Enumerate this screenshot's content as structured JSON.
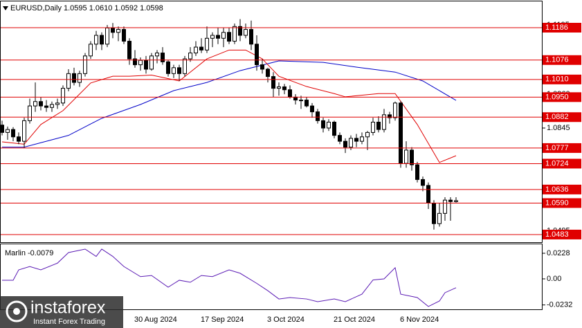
{
  "chart_data": [
    {
      "type": "candlestick",
      "title": "EURUSD,Daily  1.0595 1.0610 1.0592 1.0598",
      "categories": [
        null,
        null,
        null,
        null,
        null,
        null,
        null,
        null,
        null,
        null,
        null,
        null,
        null,
        null,
        null,
        null,
        null,
        null,
        null,
        null,
        null,
        null,
        null,
        null,
        "30 Aug 2024",
        null,
        null,
        null,
        null,
        null,
        null,
        null,
        null,
        null,
        null,
        null,
        "17 Sep 2024",
        null,
        null,
        null,
        null,
        null,
        null,
        null,
        null,
        null,
        null,
        null,
        "3 Oct 2024",
        null,
        null,
        null,
        null,
        null,
        null,
        null,
        null,
        null,
        null,
        null,
        "21 Oct 2024",
        null,
        null,
        null,
        null,
        null,
        null,
        null,
        null,
        null,
        null,
        null,
        "6 Nov 2024",
        null,
        null,
        null,
        null,
        null,
        null,
        null,
        null,
        null,
        null
      ],
      "open": [
        1.0855,
        1.083,
        1.084,
        1.0815,
        1.08,
        1.087,
        1.092,
        1.0935,
        1.092,
        1.0915,
        1.0925,
        1.093,
        1.098,
        1.103,
        1.1,
        1.103,
        1.109,
        1.113,
        1.116,
        1.113,
        1.1185,
        1.117,
        1.118,
        1.114,
        1.108,
        1.106,
        1.1075,
        1.1045,
        1.109,
        1.11,
        1.107,
        1.103,
        1.105,
        1.103,
        1.108,
        1.11,
        1.112,
        1.111,
        1.115,
        1.116,
        1.115,
        1.117,
        1.114,
        1.119,
        1.116,
        1.118,
        1.113,
        1.106,
        1.1045,
        1.102,
        1.098,
        1.0985,
        1.0975,
        1.095,
        1.094,
        1.094,
        1.092,
        1.09,
        1.087,
        1.0845,
        1.0865,
        1.082,
        1.08,
        1.078,
        1.081,
        1.08,
        1.0815,
        1.083,
        1.0865,
        1.084,
        1.089,
        1.088,
        1.093,
        1.0725,
        1.077,
        1.072,
        1.067,
        1.065,
        1.059,
        1.052,
        1.0555,
        1.06,
        1.0595
      ],
      "high": [
        1.087,
        1.085,
        1.0848,
        1.083,
        1.088,
        1.0945,
        1.1,
        1.095,
        1.094,
        1.0935,
        1.0945,
        1.099,
        1.1045,
        1.105,
        1.104,
        1.11,
        1.114,
        1.1175,
        1.117,
        1.1195,
        1.1202,
        1.119,
        1.119,
        1.115,
        1.111,
        1.1085,
        1.109,
        1.11,
        1.111,
        1.112,
        1.1075,
        1.106,
        1.106,
        1.109,
        1.112,
        1.114,
        1.115,
        1.119,
        1.117,
        1.1185,
        1.1185,
        1.1185,
        1.12,
        1.1215,
        1.12,
        1.121,
        1.116,
        1.108,
        1.105,
        1.1035,
        1.1,
        1.0995,
        1.099,
        1.096,
        1.0955,
        1.095,
        1.093,
        1.091,
        1.088,
        1.0875,
        1.087,
        1.083,
        1.081,
        1.082,
        1.0825,
        1.083,
        1.0835,
        1.088,
        1.0885,
        1.091,
        1.09,
        1.0935,
        1.0937,
        1.08,
        1.078,
        1.073,
        1.068,
        1.066,
        1.06,
        1.059,
        1.061,
        1.061,
        1.061
      ],
      "low": [
        1.082,
        1.0805,
        1.08,
        1.079,
        1.0778,
        1.086,
        1.09,
        1.0905,
        1.09,
        1.09,
        1.091,
        1.092,
        1.097,
        1.099,
        1.0985,
        1.102,
        1.108,
        1.111,
        1.111,
        1.112,
        1.115,
        1.114,
        1.113,
        1.106,
        1.105,
        1.104,
        1.103,
        1.104,
        1.1065,
        1.106,
        1.102,
        1.1015,
        1.1005,
        1.102,
        1.107,
        1.109,
        1.11,
        1.11,
        1.112,
        1.113,
        1.112,
        1.113,
        1.113,
        1.114,
        1.115,
        1.111,
        1.104,
        1.103,
        1.1,
        1.095,
        1.0955,
        1.096,
        1.0945,
        1.0925,
        1.091,
        1.0915,
        1.088,
        1.086,
        1.083,
        1.0835,
        1.081,
        1.079,
        1.076,
        1.077,
        1.078,
        1.079,
        1.077,
        1.082,
        1.083,
        1.083,
        1.086,
        1.087,
        1.071,
        1.071,
        1.07,
        1.066,
        1.063,
        1.057,
        1.05,
        1.051,
        1.053,
        1.053,
        1.0592
      ],
      "close": [
        1.083,
        1.084,
        1.0815,
        1.08,
        1.087,
        1.092,
        1.0935,
        1.092,
        1.0915,
        1.0925,
        1.093,
        1.098,
        1.103,
        1.1,
        1.103,
        1.109,
        1.113,
        1.116,
        1.113,
        1.1185,
        1.117,
        1.118,
        1.114,
        1.108,
        1.106,
        1.1075,
        1.1045,
        1.109,
        1.11,
        1.107,
        1.103,
        1.105,
        1.103,
        1.108,
        1.11,
        1.112,
        1.111,
        1.115,
        1.116,
        1.115,
        1.117,
        1.114,
        1.119,
        1.116,
        1.118,
        1.113,
        1.106,
        1.1045,
        1.102,
        1.098,
        1.0985,
        1.0975,
        1.095,
        1.094,
        1.094,
        1.092,
        1.09,
        1.087,
        1.0845,
        1.0865,
        1.082,
        1.08,
        1.078,
        1.081,
        1.08,
        1.0815,
        1.083,
        1.0865,
        1.084,
        1.089,
        1.088,
        1.093,
        1.0725,
        1.077,
        1.072,
        1.067,
        1.065,
        1.059,
        1.052,
        1.0555,
        1.06,
        1.0595,
        1.0598
      ],
      "up_color": "#ffffff",
      "down_color": "#000000",
      "edge_color": "#000000",
      "lines": [
        {
          "color": "#0000c8",
          "x": [
            0,
            4,
            12,
            18,
            25,
            31,
            37,
            43,
            50,
            58,
            64,
            71,
            76,
            82
          ],
          "values": [
            1.078,
            1.078,
            1.082,
            1.0878,
            1.0925,
            1.0972,
            1.1,
            1.104,
            1.1073,
            1.1068,
            1.1052,
            1.1035,
            1.1005,
            1.0939
          ]
        },
        {
          "color": "#e00000",
          "x": [
            0,
            4,
            7,
            11,
            16,
            20,
            23,
            27,
            32,
            37,
            41,
            44,
            47,
            50,
            55,
            60,
            62,
            68,
            71,
            75,
            79,
            82
          ],
          "values": [
            1.0798,
            1.079,
            1.0857,
            1.0904,
            1.0998,
            1.1021,
            1.1021,
            1.1025,
            1.1005,
            1.108,
            1.111,
            1.111,
            1.108,
            1.1021,
            1.0986,
            1.0962,
            1.0951,
            1.0962,
            1.0962,
            1.0857,
            1.0728,
            1.0751
          ]
        }
      ],
      "levels": [
        1.1186,
        1.1076,
        {
          "value": 1.101,
          "label": "1.1010"
        },
        {
          "value": 1.095,
          "label": "1.0950"
        },
        1.0882,
        1.0777,
        1.0724,
        1.0636,
        {
          "value": 1.059,
          "label": "1.0590"
        },
        1.0483
      ],
      "level_color": "#e00000",
      "ylim": [
        1.0457,
        1.1273
      ],
      "yticks": [
        1.1195,
        {
          "value": 1.096,
          "label": "1.0960"
        },
        1.0845,
        1.0495
      ]
    },
    {
      "type": "line",
      "title": "Marlin -0.0079",
      "color": "#5a1ab4",
      "x": [
        0,
        2,
        3,
        5,
        7,
        10,
        12,
        15,
        17,
        18,
        20,
        22,
        25,
        27,
        30,
        32,
        34,
        36,
        38,
        41,
        43,
        46,
        48,
        50,
        52,
        55,
        57,
        60,
        62,
        65,
        67,
        69,
        71,
        72,
        75,
        77,
        79,
        80,
        82
      ],
      "values": [
        -0.0012,
        -0.0012,
        0.008,
        0.011,
        0.008,
        0.014,
        0.0234,
        0.0265,
        0.02,
        0.0265,
        0.02,
        0.011,
        0.002,
        0.003,
        -0.0074,
        -0.0012,
        -0.003,
        0.003,
        0.002,
        0.008,
        0.005,
        -0.004,
        -0.0105,
        -0.0179,
        -0.0166,
        -0.0179,
        -0.0203,
        -0.0179,
        -0.0203,
        -0.0136,
        -0.001,
        0.0,
        0.0099,
        -0.0136,
        -0.0166,
        -0.0246,
        -0.0197,
        -0.0123,
        -0.0079
      ],
      "ylim": [
        -0.0271,
        0.0308
      ],
      "yticks": [
        0.0228,
        {
          "value": 0,
          "label": "0.00"
        },
        -0.0232
      ]
    }
  ],
  "watermark": {
    "brand": "instaforex",
    "tagline": "Instant Forex Trading"
  }
}
